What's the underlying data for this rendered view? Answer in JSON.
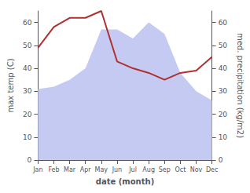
{
  "chart_data": {
    "type": "line",
    "xlabel": "date (month)",
    "ylabel": "max temp (C)",
    "y2label": "med. precipitation (kg/m2)",
    "categories": [
      "Jan",
      "Feb",
      "Mar",
      "Apr",
      "May",
      "Jun",
      "Jul",
      "Aug",
      "Sep",
      "Oct",
      "Nov",
      "Dec"
    ],
    "series": [
      {
        "type": "area",
        "axis": "y2",
        "color": "#c5caf2",
        "values": [
          31,
          32,
          35,
          40,
          57,
          57,
          53,
          60,
          55,
          38,
          30,
          26
        ]
      },
      {
        "type": "line",
        "color": "#b03030",
        "values": [
          49,
          58,
          62,
          62,
          65,
          43,
          40,
          38,
          35,
          38,
          39,
          45
        ]
      }
    ],
    "ylim": [
      0,
      65
    ],
    "yticks": [
      0,
      10,
      20,
      30,
      40,
      50,
      60
    ],
    "y2lim": [
      0,
      65
    ],
    "y2ticks": [
      0,
      10,
      20,
      30,
      40,
      50,
      60
    ],
    "grid": false
  }
}
